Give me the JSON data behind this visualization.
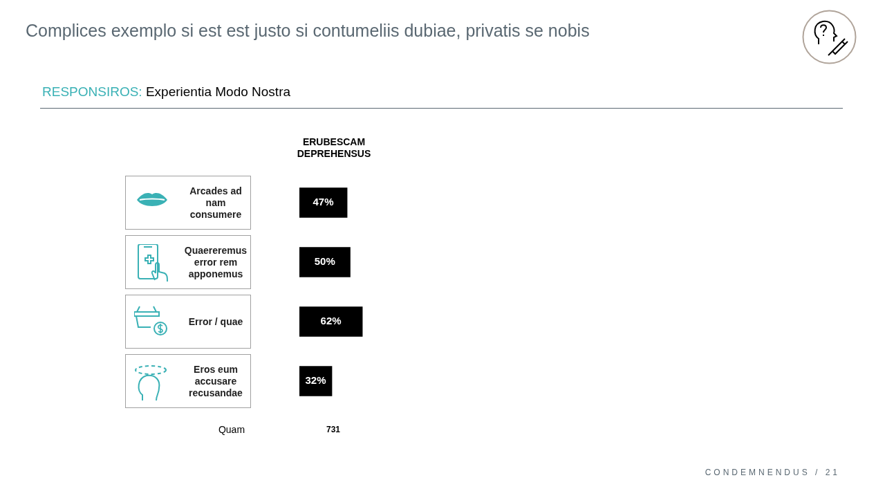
{
  "chart_data": {
    "type": "bar",
    "orientation": "horizontal",
    "title": "Complices exemplo si est est justo si contumeliis dubiae, privatis se nobis",
    "subtitle": "RESPONSIROS: Experientia Modo Nostra",
    "xlabel": "ERUBESCAM DEPREHENSUS",
    "categories": [
      "Arcades ad nam consumere",
      "Quaereremus error rem apponemus",
      "Error / quae",
      "Eros eum accusare recusandae"
    ],
    "series": [
      {
        "color": "#000000",
        "values": [
          47,
          50,
          62,
          32
        ],
        "value_labels": [
          "47%",
          "50%",
          "62%",
          "32%"
        ]
      }
    ],
    "annotations": [
      "Quam",
      "731",
      "CONDEMNENDUS / 21"
    ],
    "legend": false
  }
}
